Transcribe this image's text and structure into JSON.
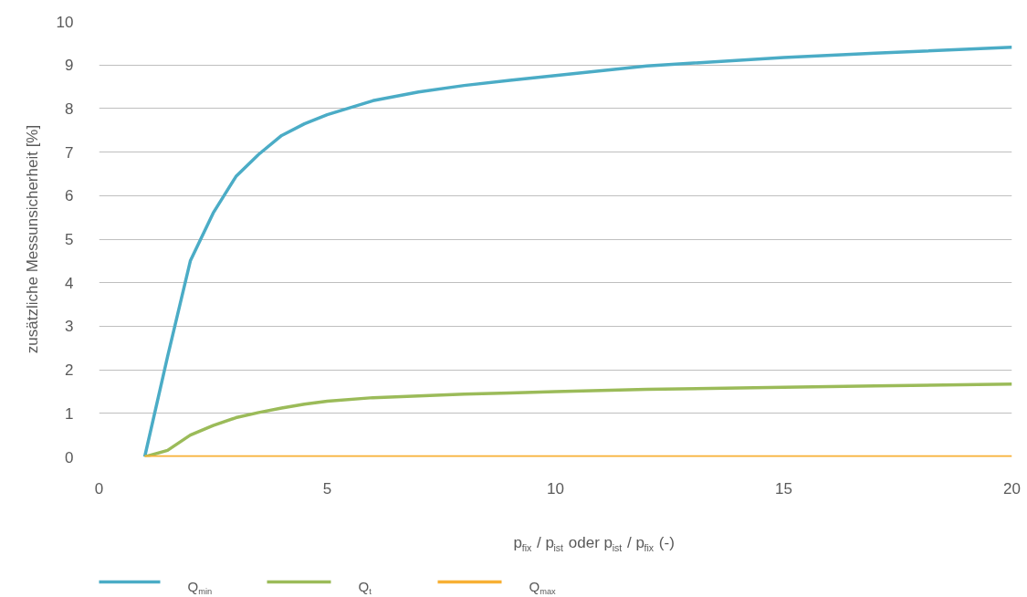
{
  "chart_data": {
    "type": "line",
    "xlabel": "p$_{fix}$ / p$_{ist}$ oder p$_{ist}$ / p$_{fix}$ (-)",
    "ylabel": "zusätzliche Messunsicherheit [%]",
    "x": [
      1,
      1.5,
      2,
      2.5,
      3,
      3.5,
      4,
      4.5,
      5,
      6,
      7,
      8,
      9,
      10,
      12,
      15,
      17,
      20
    ],
    "series": [
      {
        "name": "Q$_{min}$",
        "color": "#4bacc6",
        "values": [
          0,
          2.3,
          4.5,
          5.6,
          6.44,
          6.95,
          7.38,
          7.65,
          7.86,
          8.18,
          8.38,
          8.53,
          8.65,
          8.76,
          8.98,
          9.17,
          9.27,
          9.41
        ]
      },
      {
        "name": "Q$_{t}$",
        "color": "#9bbb59",
        "values": [
          0,
          0.15,
          0.5,
          0.72,
          0.9,
          1.02,
          1.12,
          1.21,
          1.28,
          1.36,
          1.4,
          1.44,
          1.47,
          1.5,
          1.55,
          1.6,
          1.63,
          1.67
        ]
      },
      {
        "name": "Q$_{max}$",
        "color": "#f7b035",
        "values": [
          0,
          0,
          0,
          0,
          0,
          0,
          0,
          0,
          0,
          0,
          0,
          0,
          0,
          0,
          0,
          0,
          0,
          0
        ]
      }
    ],
    "xlim": [
      0,
      20
    ],
    "ylim": [
      0,
      10
    ],
    "xticks": [
      0,
      5,
      10,
      15,
      20
    ],
    "yticks": [
      0,
      1,
      2,
      3,
      4,
      5,
      6,
      7,
      8,
      9,
      10
    ],
    "grid": "y",
    "legend": "bottom"
  }
}
